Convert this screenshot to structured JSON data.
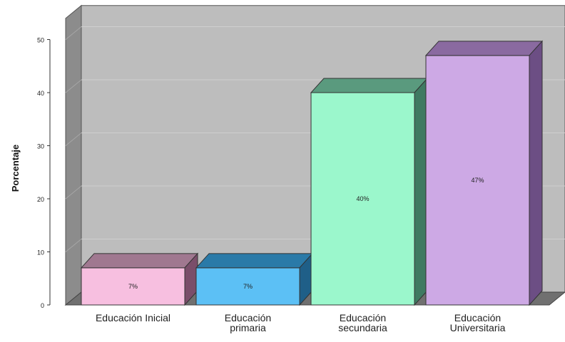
{
  "chart_data": {
    "type": "bar",
    "categories": [
      [
        "Educación Inicial"
      ],
      [
        "Educación",
        "primaria"
      ],
      [
        "Educación",
        "secundaria"
      ],
      [
        "Educación",
        "Universitaria"
      ]
    ],
    "values": [
      7,
      7,
      40,
      47
    ],
    "value_labels": [
      "7%",
      "7%",
      "40%",
      "47%"
    ],
    "ylabel": "Porcentaje",
    "yticks": [
      0,
      10,
      20,
      30,
      40,
      50
    ],
    "ylim": [
      0,
      54
    ],
    "grid": true,
    "style": "3d",
    "colors": {
      "bars": [
        "#f7bfe0",
        "#5cc0f5",
        "#9bf7cc",
        "#cda9e5"
      ],
      "tops": [
        "#a07890",
        "#2a7aa8",
        "#5a9a7e",
        "#8a6aa0"
      ],
      "sides": [
        "#7a4e6a",
        "#1f5f88",
        "#3f7a62",
        "#6c4e84"
      ],
      "wall": "#bdbdbd",
      "wall_side": "#8c8c8c",
      "floor": "#707070",
      "gridline": "#cfcfcf"
    }
  }
}
